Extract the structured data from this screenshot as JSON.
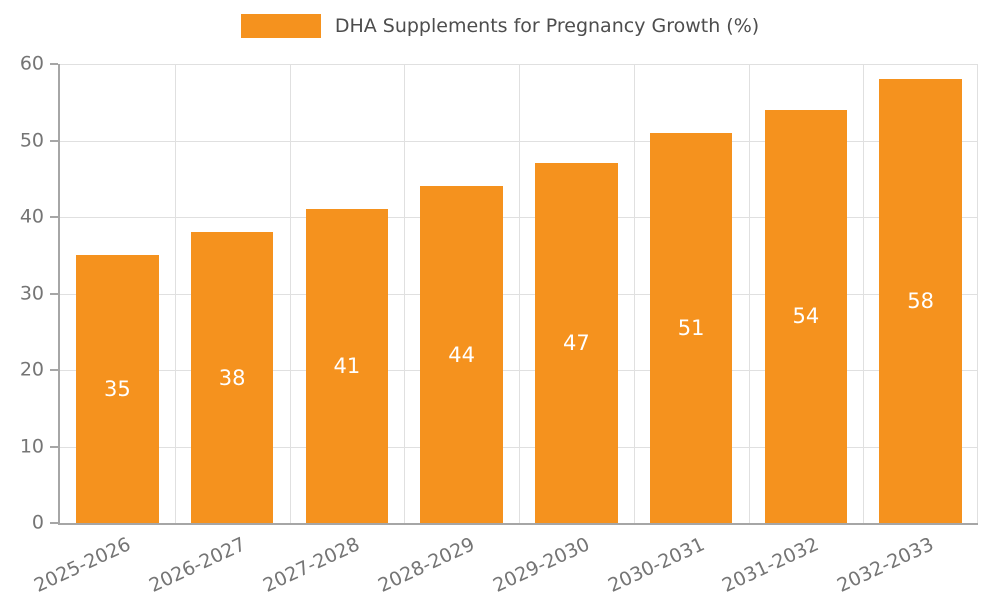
{
  "legend": {
    "label": "DHA Supplements for Pregnancy Growth (%)",
    "swatch_color": "#f5921e"
  },
  "chart_data": {
    "type": "bar",
    "title": "DHA Supplements for Pregnancy Growth (%)",
    "categories": [
      "2025-2026",
      "2026-2027",
      "2027-2028",
      "2028-2029",
      "2029-2030",
      "2030-2031",
      "2031-2032",
      "2032-2033"
    ],
    "values": [
      35,
      38,
      41,
      44,
      47,
      51,
      54,
      58
    ],
    "xlabel": "",
    "ylabel": "",
    "ylim": [
      0,
      60
    ],
    "ytick_step": 10,
    "yticks": [
      0,
      10,
      20,
      30,
      40,
      50,
      60
    ],
    "grid": true,
    "legend_position": "top",
    "bar_color": "#f5921e",
    "bar_label_color": "#ffffff",
    "axis_color": "#a6a6a6",
    "gridline_color": "#e0e0e0",
    "tick_label_color": "#757575"
  }
}
